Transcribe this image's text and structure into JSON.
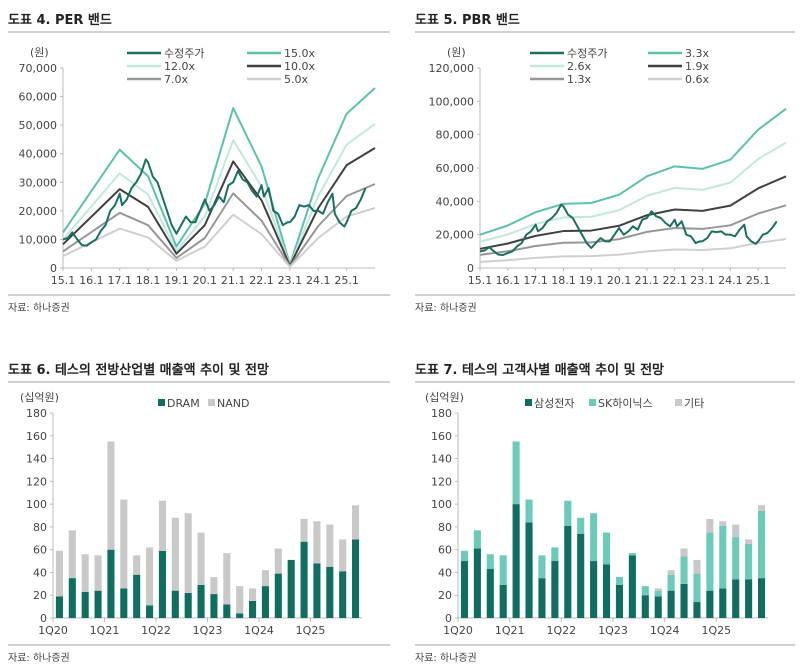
{
  "charts": [
    {
      "title": "도표 4. PER 밴드",
      "source": "자료: 하나증권"
    },
    {
      "title": "도표 5. PBR 밴드",
      "source": "자료: 하나증권"
    },
    {
      "title": "도표 6. 테스의 전방산업별 매출액 추이 및 전망",
      "source": "자료: 하나증권"
    },
    {
      "title": "도표 7. 테스의 고객사별 매출액 추이 및 전망",
      "source": "자료: 하나증권"
    }
  ],
  "chart_data": [
    {
      "type": "line",
      "title": "도표 4. PER 밴드",
      "ylabel": "(원)",
      "ylim": [
        0,
        70000
      ],
      "yticks": [
        0,
        10000,
        20000,
        30000,
        40000,
        50000,
        60000,
        70000
      ],
      "xticks": [
        "15.1",
        "16.1",
        "17.1",
        "18.1",
        "19.1",
        "20.1",
        "21.1",
        "22.1",
        "23.1",
        "24.1",
        "25.1"
      ],
      "xlim": [
        "2015-01",
        "2026-01"
      ],
      "grid": false,
      "legend": "top",
      "band_x": [
        "2015-01",
        "2017-01",
        "2018-01",
        "2019-01",
        "2020-01",
        "2021-01",
        "2022-01",
        "2023-01",
        "2024-01",
        "2025-01",
        "2026-01"
      ],
      "series": [
        {
          "name": "수정주가",
          "color": "#1b6f60",
          "width": 2,
          "price": true
        },
        {
          "name": "15.0x",
          "color": "#5cc1aa",
          "width": 2,
          "values": [
            12450,
            41400,
            32100,
            7500,
            22500,
            55950,
            35550,
            1200,
            31500,
            54000,
            63000
          ]
        },
        {
          "name": "12.0x",
          "color": "#c2e8dd",
          "width": 2,
          "values": [
            9960,
            33120,
            25680,
            6000,
            18000,
            44760,
            28440,
            960,
            25200,
            43200,
            50400
          ]
        },
        {
          "name": "10.0x",
          "color": "#404040",
          "width": 2,
          "values": [
            8300,
            27600,
            21400,
            5000,
            15000,
            37300,
            23700,
            800,
            21000,
            36000,
            42000
          ]
        },
        {
          "name": "7.0x",
          "color": "#979797",
          "width": 2,
          "values": [
            5810,
            19320,
            14980,
            3500,
            10500,
            26110,
            16590,
            560,
            14700,
            25200,
            29400
          ]
        },
        {
          "name": "5.0x",
          "color": "#cfcfcf",
          "width": 2,
          "values": [
            4150,
            13800,
            10700,
            2500,
            7500,
            18650,
            11850,
            400,
            10500,
            18000,
            21000
          ]
        }
      ]
    },
    {
      "type": "line",
      "title": "도표 5. PBR 밴드",
      "ylabel": "(원)",
      "ylim": [
        0,
        120000
      ],
      "yticks": [
        0,
        20000,
        40000,
        60000,
        80000,
        100000,
        120000
      ],
      "xticks": [
        "15.1",
        "16.1",
        "17.1",
        "18.1",
        "19.1",
        "20.1",
        "21.1",
        "22.1",
        "23.1",
        "24.1",
        "25.1"
      ],
      "xlim": [
        "2015-01",
        "2026-01"
      ],
      "grid": false,
      "legend": "top",
      "band_x": [
        "2015-01",
        "2016-01",
        "2017-01",
        "2018-01",
        "2019-01",
        "2020-01",
        "2021-01",
        "2022-01",
        "2023-01",
        "2024-01",
        "2025-01",
        "2026-01"
      ],
      "series": [
        {
          "name": "수정주가",
          "color": "#1b6f60",
          "width": 2,
          "price": true
        },
        {
          "name": "3.3x",
          "color": "#5cc1aa",
          "width": 2,
          "values": [
            20000,
            25500,
            33500,
            38500,
            39000,
            44000,
            55000,
            61000,
            59500,
            65000,
            83000,
            95500
          ]
        },
        {
          "name": "2.6x",
          "color": "#c2e8dd",
          "width": 2,
          "values": [
            15760,
            20100,
            26390,
            30340,
            30730,
            34660,
            43340,
            48050,
            46880,
            51220,
            65390,
            75240
          ]
        },
        {
          "name": "1.9x",
          "color": "#404040",
          "width": 2,
          "values": [
            11510,
            14690,
            19290,
            22170,
            22460,
            25330,
            31670,
            35110,
            34260,
            37430,
            47790,
            54990
          ]
        },
        {
          "name": "1.3x",
          "color": "#979797",
          "width": 2,
          "values": [
            7880,
            10050,
            13200,
            15170,
            15370,
            17330,
            21670,
            24020,
            23440,
            25610,
            32700,
            37620
          ]
        },
        {
          "name": "0.6x",
          "color": "#cfcfcf",
          "width": 2,
          "values": [
            3640,
            4640,
            6090,
            7000,
            7090,
            8000,
            10000,
            11090,
            10820,
            11820,
            15090,
            17360
          ]
        }
      ]
    },
    {
      "type": "bar",
      "stacked": true,
      "title": "도표 6. 테스의 전방산업별 매출액 추이 및 전망",
      "ylabel": "(십억원)",
      "ylim": [
        0,
        180
      ],
      "yticks": [
        0,
        20,
        40,
        60,
        80,
        100,
        120,
        140,
        160,
        180
      ],
      "legend": "top",
      "grid": false,
      "categories": [
        "1Q20",
        "2Q20",
        "3Q20",
        "4Q20",
        "1Q21",
        "2Q21",
        "3Q21",
        "4Q21",
        "1Q22",
        "2Q22",
        "3Q22",
        "4Q22",
        "1Q23",
        "2Q23",
        "3Q23",
        "4Q23",
        "1Q24",
        "2Q24",
        "3Q24",
        "4Q24",
        "1Q25",
        "2Q25",
        "3Q25",
        "4Q25"
      ],
      "xticks": [
        "1Q20",
        "1Q21",
        "1Q22",
        "1Q23",
        "1Q24",
        "1Q25"
      ],
      "series": [
        {
          "name": "DRAM",
          "color": "#0f6e5f",
          "values": [
            19,
            35,
            23,
            24,
            60,
            26,
            38,
            11,
            59,
            24,
            22,
            29,
            21,
            12,
            4,
            15,
            28,
            39,
            51,
            67,
            48,
            45,
            41,
            69
          ]
        },
        {
          "name": "NAND",
          "color": "#c9c9c9",
          "values": [
            40,
            42,
            33,
            31,
            95,
            78,
            17,
            51,
            44,
            64,
            70,
            46,
            15,
            45,
            24,
            11,
            14,
            22,
            0,
            20,
            37,
            37,
            28,
            30
          ]
        }
      ]
    },
    {
      "type": "bar",
      "stacked": true,
      "title": "도표 7. 테스의 고객사별 매출액 추이 및 전망",
      "ylabel": "(십억원)",
      "ylim": [
        0,
        180
      ],
      "yticks": [
        0,
        20,
        40,
        60,
        80,
        100,
        120,
        140,
        160,
        180
      ],
      "legend": "top",
      "grid": false,
      "categories": [
        "1Q20",
        "2Q20",
        "3Q20",
        "4Q20",
        "1Q21",
        "2Q21",
        "3Q21",
        "4Q21",
        "1Q22",
        "2Q22",
        "3Q22",
        "4Q22",
        "1Q23",
        "2Q23",
        "3Q23",
        "4Q23",
        "1Q24",
        "2Q24",
        "3Q24",
        "4Q24",
        "1Q25",
        "2Q25",
        "3Q25",
        "4Q25"
      ],
      "xticks": [
        "1Q20",
        "1Q21",
        "1Q22",
        "1Q23",
        "1Q24",
        "1Q25"
      ],
      "series": [
        {
          "name": "삼성전자",
          "color": "#0f6e5f",
          "values": [
            50,
            61,
            43,
            29,
            100,
            84,
            35,
            50,
            81,
            74,
            50,
            47,
            29,
            55,
            20,
            19,
            24,
            30,
            14,
            24,
            26,
            34,
            34,
            35
          ]
        },
        {
          "name": "SK하이닉스",
          "color": "#6ccbb8",
          "values": [
            9,
            16,
            13,
            26,
            55,
            20,
            20,
            12,
            22,
            14,
            42,
            28,
            7,
            2,
            8,
            5,
            14,
            24,
            25,
            51,
            55,
            37,
            31,
            59
          ]
        },
        {
          "name": "기타",
          "color": "#c9c9c9",
          "values": [
            0,
            0,
            0,
            0,
            0,
            0,
            0,
            0,
            0,
            0,
            0,
            0,
            0,
            0,
            0,
            2,
            4,
            7,
            12,
            12,
            4,
            11,
            4,
            5
          ]
        }
      ]
    }
  ],
  "price_series": {
    "name": "수정주가",
    "dates": [
      "2015-01",
      "2015-03",
      "2015-05",
      "2015-07",
      "2015-09",
      "2015-11",
      "2016-01",
      "2016-03",
      "2016-05",
      "2016-07",
      "2016-09",
      "2016-11",
      "2017-01",
      "2017-02",
      "2017-04",
      "2017-06",
      "2017-08",
      "2017-10",
      "2017-12",
      "2018-01",
      "2018-03",
      "2018-05",
      "2018-07",
      "2018-09",
      "2018-11",
      "2019-01",
      "2019-03",
      "2019-05",
      "2019-07",
      "2019-09",
      "2019-11",
      "2020-01",
      "2020-03",
      "2020-05",
      "2020-07",
      "2020-09",
      "2020-11",
      "2021-01",
      "2021-03",
      "2021-05",
      "2021-07",
      "2021-09",
      "2021-11",
      "2022-01",
      "2022-02",
      "2022-04",
      "2022-06",
      "2022-08",
      "2022-10",
      "2022-12",
      "2023-01",
      "2023-03",
      "2023-05",
      "2023-07",
      "2023-09",
      "2023-11",
      "2024-01",
      "2024-03",
      "2024-05",
      "2024-07",
      "2024-08",
      "2024-10",
      "2024-12",
      "2025-01",
      "2025-03",
      "2025-05",
      "2025-07",
      "2025-09"
    ],
    "values": [
      10000,
      10500,
      12500,
      10000,
      8000,
      7800,
      9000,
      10000,
      13000,
      15000,
      20000,
      22000,
      26000,
      22000,
      24000,
      28000,
      30000,
      33000,
      38000,
      37000,
      32000,
      30000,
      25000,
      20000,
      15000,
      12000,
      15000,
      18000,
      16000,
      16000,
      20000,
      24000,
      20000,
      22000,
      25000,
      23000,
      29000,
      30000,
      34000,
      31000,
      30000,
      27000,
      25000,
      29000,
      25000,
      28000,
      20000,
      19000,
      15000,
      16000,
      16000,
      18000,
      22000,
      21500,
      22000,
      20000,
      20000,
      19000,
      23000,
      26000,
      19000,
      16000,
      14500,
      16000,
      20000,
      21000,
      24000,
      28000
    ]
  }
}
